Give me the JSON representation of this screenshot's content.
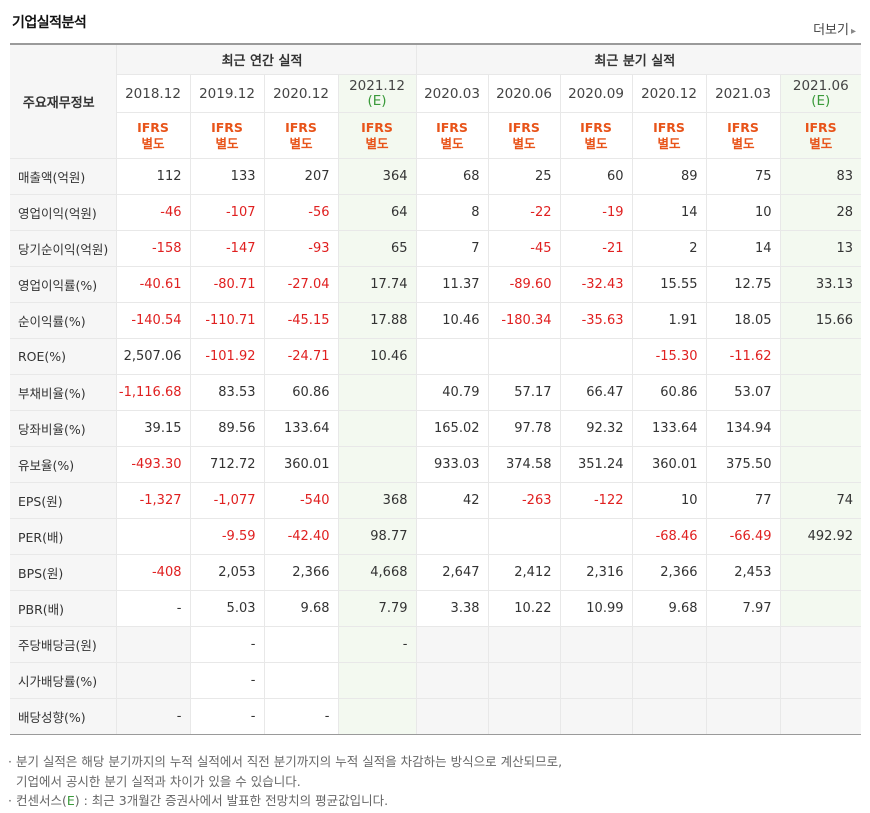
{
  "title": "기업실적분석",
  "more_label": "더보기",
  "header": {
    "row_header": "주요재무정보",
    "annual_group": "최근 연간 실적",
    "quarter_group": "최근 분기 실적",
    "periods": [
      {
        "date": "2018.12",
        "e": ""
      },
      {
        "date": "2019.12",
        "e": ""
      },
      {
        "date": "2020.12",
        "e": ""
      },
      {
        "date": "2021.12",
        "e": "(E)"
      },
      {
        "date": "2020.03",
        "e": ""
      },
      {
        "date": "2020.06",
        "e": ""
      },
      {
        "date": "2020.09",
        "e": ""
      },
      {
        "date": "2020.12",
        "e": ""
      },
      {
        "date": "2021.03",
        "e": ""
      },
      {
        "date": "2021.06",
        "e": "(E)"
      }
    ],
    "standard_top": "IFRS",
    "standard_bottom": "별도"
  },
  "rows": [
    {
      "label": "매출액(억원)",
      "values": [
        "112",
        "133",
        "207",
        "364",
        "68",
        "25",
        "60",
        "89",
        "75",
        "83"
      ]
    },
    {
      "label": "영업이익(억원)",
      "values": [
        "-46",
        "-107",
        "-56",
        "64",
        "8",
        "-22",
        "-19",
        "14",
        "10",
        "28"
      ]
    },
    {
      "label": "당기순이익(억원)",
      "values": [
        "-158",
        "-147",
        "-93",
        "65",
        "7",
        "-45",
        "-21",
        "2",
        "14",
        "13"
      ]
    },
    {
      "label": "영업이익률(%)",
      "values": [
        "-40.61",
        "-80.71",
        "-27.04",
        "17.74",
        "11.37",
        "-89.60",
        "-32.43",
        "15.55",
        "12.75",
        "33.13"
      ]
    },
    {
      "label": "순이익률(%)",
      "values": [
        "-140.54",
        "-110.71",
        "-45.15",
        "17.88",
        "10.46",
        "-180.34",
        "-35.63",
        "1.91",
        "18.05",
        "15.66"
      ]
    },
    {
      "label": "ROE(%)",
      "values": [
        "2,507.06",
        "-101.92",
        "-24.71",
        "10.46",
        "",
        "",
        "",
        "-15.30",
        "-11.62",
        ""
      ]
    },
    {
      "label": "부채비율(%)",
      "values": [
        "-1,116.68",
        "83.53",
        "60.86",
        "",
        "40.79",
        "57.17",
        "66.47",
        "60.86",
        "53.07",
        ""
      ]
    },
    {
      "label": "당좌비율(%)",
      "values": [
        "39.15",
        "89.56",
        "133.64",
        "",
        "165.02",
        "97.78",
        "92.32",
        "133.64",
        "134.94",
        ""
      ]
    },
    {
      "label": "유보율(%)",
      "values": [
        "-493.30",
        "712.72",
        "360.01",
        "",
        "933.03",
        "374.58",
        "351.24",
        "360.01",
        "375.50",
        ""
      ]
    },
    {
      "label": "EPS(원)",
      "values": [
        "-1,327",
        "-1,077",
        "-540",
        "368",
        "42",
        "-263",
        "-122",
        "10",
        "77",
        "74"
      ]
    },
    {
      "label": "PER(배)",
      "values": [
        "",
        "-9.59",
        "-42.40",
        "98.77",
        "",
        "",
        "",
        "-68.46",
        "-66.49",
        "492.92"
      ]
    },
    {
      "label": "BPS(원)",
      "values": [
        "-408",
        "2,053",
        "2,366",
        "4,668",
        "2,647",
        "2,412",
        "2,316",
        "2,366",
        "2,453",
        ""
      ]
    },
    {
      "label": "PBR(배)",
      "values": [
        "-",
        "5.03",
        "9.68",
        "7.79",
        "3.38",
        "10.22",
        "10.99",
        "9.68",
        "7.97",
        ""
      ]
    },
    {
      "label": "주당배당금(원)",
      "values": [
        "",
        "-",
        "",
        "-",
        "",
        "",
        "",
        "",
        "",
        ""
      ]
    },
    {
      "label": "시가배당률(%)",
      "values": [
        "",
        "-",
        "",
        "",
        "",
        "",
        "",
        "",
        "",
        ""
      ]
    },
    {
      "label": "배당성향(%)",
      "values": [
        "-",
        "-",
        "-",
        "",
        "",
        "",
        "",
        "",
        "",
        ""
      ]
    }
  ],
  "notes": {
    "line1": "· 분기 실적은 해당 분기까지의 누적 실적에서 직전 분기까지의 누적 실적을 차감하는 방식으로 계산되므로,",
    "line2": "  기업에서 공시한 분기 실적과 차이가 있을 수 있습니다.",
    "line3_pre": "· 컨센서스(",
    "line3_e": "E",
    "line3_post": ") : 최근 3개월간 증권사에서 발표한 전망치의 평균값입니다."
  }
}
